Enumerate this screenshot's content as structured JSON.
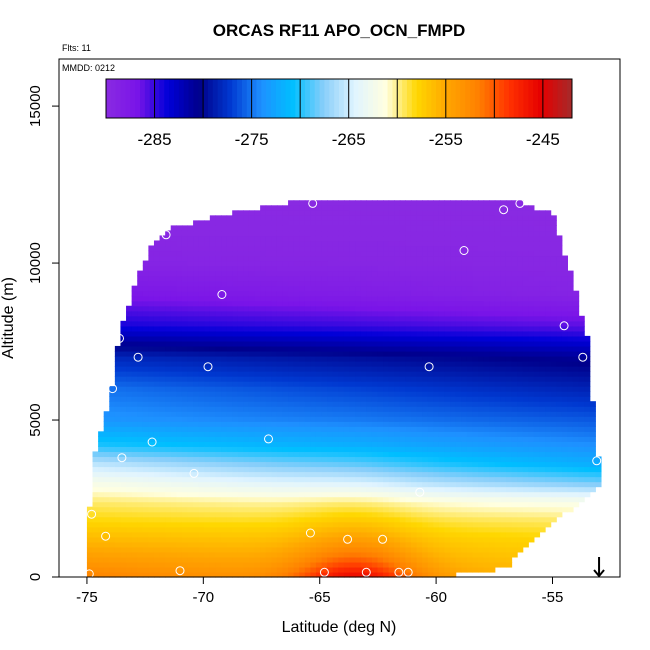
{
  "chart_data": {
    "type": "heatmap",
    "title": "ORCAS RF11 APO_OCN_FMPD",
    "annotations": [
      "Flts: 11",
      "MMDD: 0212"
    ],
    "xlabel": "Latitude (deg N)",
    "ylabel": "Altitude (m)",
    "xlim": [
      -76.2,
      -52.1
    ],
    "ylim": [
      0,
      16500
    ],
    "x_ticks": [
      -75,
      -70,
      -65,
      -60,
      -55
    ],
    "y_ticks": [
      0,
      5000,
      10000,
      15000
    ],
    "colorbar": {
      "min": -290,
      "max": -242,
      "ticks": [
        -285,
        -275,
        -265,
        -255,
        -245
      ],
      "colors": [
        "#8a2be2",
        "#7a14e8",
        "#0000d8",
        "#00008b",
        "#0038d0",
        "#1e90ff",
        "#00bfff",
        "#87cefa",
        "#e0f4ff",
        "#ffffe0",
        "#ffd700",
        "#ffa500",
        "#ff7f00",
        "#ff3000",
        "#e60000",
        "#a52a2a"
      ]
    },
    "coverage": {
      "latitude": [
        -75.0,
        -74.8,
        -74.2,
        -73.8,
        -73.6,
        -73.4,
        -72.8,
        -72.2,
        -71.5,
        -69.0,
        -65.0,
        -60.0,
        -57.0,
        -55.0,
        -54.0,
        -53.5,
        -53.1,
        -53.0
      ],
      "top_altitude": [
        0,
        3500,
        5000,
        6500,
        7800,
        8200,
        9500,
        10500,
        11000,
        11500,
        12000,
        12000,
        12000,
        11500,
        9000,
        7500,
        4000,
        3500
      ],
      "bottom_altitude": [
        0,
        0,
        0,
        0,
        0,
        0,
        0,
        0,
        0,
        0,
        0,
        0,
        300,
        1800,
        2200,
        2500,
        2800,
        3000
      ]
    },
    "field_profile": {
      "altitude": [
        0,
        600,
        1200,
        1800,
        2400,
        3000,
        3600,
        4200,
        5000,
        6000,
        7000,
        8000,
        9000,
        10000,
        11000,
        12000
      ],
      "value_south": [
        -252,
        -254,
        -256,
        -258,
        -259.5,
        -262,
        -265.5,
        -270,
        -273.5,
        -275,
        -278,
        -284,
        -287,
        -289,
        -289.5,
        -289.8
      ],
      "value_north": [
        -256,
        -257,
        -258,
        -259.5,
        -262,
        -268,
        -272,
        -274,
        -276,
        -278.5,
        -281,
        -286,
        -289,
        -289.5,
        -289.7,
        -289.9
      ],
      "surface_max": {
        "value": -244,
        "latitude": -63.5
      }
    },
    "sample_points": [
      {
        "lat": -74.9,
        "alt": 100
      },
      {
        "lat": -74.8,
        "alt": 2000
      },
      {
        "lat": -74.2,
        "alt": 1300
      },
      {
        "lat": -73.9,
        "alt": 6000
      },
      {
        "lat": -73.6,
        "alt": 7600
      },
      {
        "lat": -73.5,
        "alt": 3800
      },
      {
        "lat": -72.8,
        "alt": 7000
      },
      {
        "lat": -72.2,
        "alt": 4300
      },
      {
        "lat": -71.6,
        "alt": 10900
      },
      {
        "lat": -71.0,
        "alt": 200
      },
      {
        "lat": -70.4,
        "alt": 3300
      },
      {
        "lat": -69.8,
        "alt": 6700
      },
      {
        "lat": -69.2,
        "alt": 9000
      },
      {
        "lat": -67.2,
        "alt": 4400
      },
      {
        "lat": -65.4,
        "alt": 1400
      },
      {
        "lat": -65.3,
        "alt": 11900
      },
      {
        "lat": -64.8,
        "alt": 150
      },
      {
        "lat": -63.8,
        "alt": 1200
      },
      {
        "lat": -63.0,
        "alt": 150
      },
      {
        "lat": -62.3,
        "alt": 1200
      },
      {
        "lat": -61.6,
        "alt": 150
      },
      {
        "lat": -61.2,
        "alt": 150
      },
      {
        "lat": -60.7,
        "alt": 2700
      },
      {
        "lat": -60.3,
        "alt": 6700
      },
      {
        "lat": -58.8,
        "alt": 10400
      },
      {
        "lat": -57.1,
        "alt": 11700
      },
      {
        "lat": -56.4,
        "alt": 11900
      },
      {
        "lat": -54.5,
        "alt": 8000
      },
      {
        "lat": -53.7,
        "alt": 7000
      },
      {
        "lat": -53.1,
        "alt": 3700
      }
    ],
    "arrow_marker": {
      "lat": -53.0,
      "alt": 0,
      "direction": "down"
    }
  }
}
